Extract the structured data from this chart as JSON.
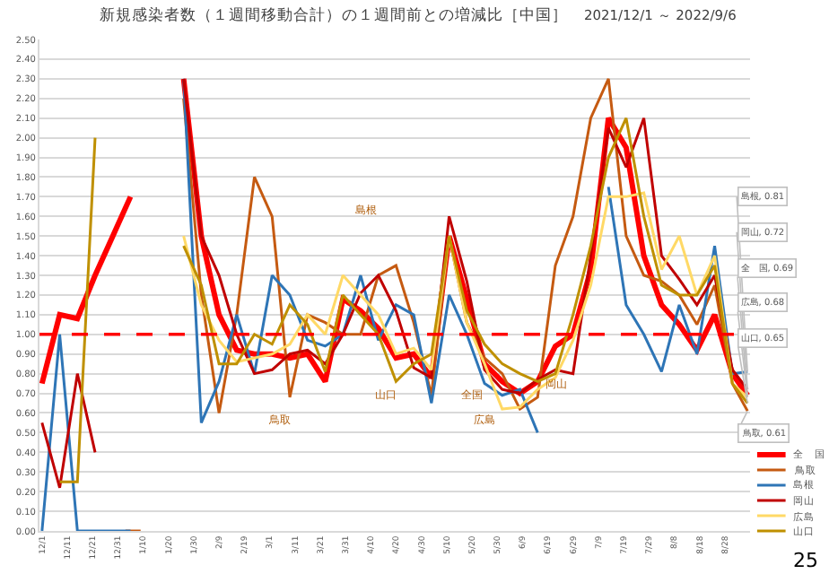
{
  "chart_data": {
    "type": "line",
    "title": "新規感染者数（１週間移動合計）の１週間前との増減比［中国］",
    "subtitle": "2021/12/1 ～ 2022/9/6",
    "x": [
      "2021-12-01",
      "2021-12-08",
      "2021-12-15",
      "2021-12-22",
      "2021-12-29",
      "2022-01-05",
      "2022-01-12",
      "2022-01-19",
      "2022-01-26",
      "2022-02-02",
      "2022-02-09",
      "2022-02-16",
      "2022-02-23",
      "2022-03-02",
      "2022-03-09",
      "2022-03-16",
      "2022-03-23",
      "2022-03-30",
      "2022-04-06",
      "2022-04-13",
      "2022-04-20",
      "2022-04-27",
      "2022-05-04",
      "2022-05-11",
      "2022-05-18",
      "2022-05-25",
      "2022-06-01",
      "2022-06-08",
      "2022-06-15",
      "2022-06-22",
      "2022-06-29",
      "2022-07-06",
      "2022-07-13",
      "2022-07-20",
      "2022-07-27",
      "2022-08-03",
      "2022-08-10",
      "2022-08-17",
      "2022-08-24",
      "2022-08-31",
      "2022-09-06"
    ],
    "series": [
      {
        "name": "全　国",
        "color": "#ff0000",
        "values": [
          0.75,
          1.1,
          1.08,
          1.3,
          1.5,
          1.7,
          null,
          null,
          2.3,
          1.5,
          1.1,
          0.92,
          0.9,
          0.9,
          0.88,
          0.9,
          0.76,
          1.18,
          1.12,
          1.03,
          0.88,
          0.9,
          0.78,
          1.5,
          1.18,
          0.85,
          0.76,
          0.7,
          0.76,
          0.94,
          1.0,
          1.33,
          2.1,
          1.95,
          1.4,
          1.15,
          1.05,
          0.92,
          1.1,
          0.8,
          0.69
        ]
      },
      {
        "name": "鳥取",
        "color": "#c55a11",
        "x": [
          "2022-01-03",
          "2022-01-09",
          "2022-01-12",
          "2022-01-19",
          "2022-01-26",
          "2022-02-02",
          "2022-02-09",
          "2022-02-16",
          "2022-02-23",
          "2022-03-02",
          "2022-03-09",
          "2022-03-16",
          "2022-03-23",
          "2022-03-30",
          "2022-04-06",
          "2022-04-13",
          "2022-04-20",
          "2022-04-27",
          "2022-05-04",
          "2022-05-11",
          "2022-05-18",
          "2022-05-25",
          "2022-06-01",
          "2022-06-08",
          "2022-06-15",
          "2022-06-22",
          "2022-06-29",
          "2022-07-06",
          "2022-07-13",
          "2022-07-20",
          "2022-07-27",
          "2022-08-03",
          "2022-08-10",
          "2022-08-17",
          "2022-08-24",
          "2022-08-31",
          "2022-09-06"
        ],
        "values": [
          0.0,
          0.0,
          null,
          null,
          2.2,
          1.2,
          0.6,
          1.1,
          1.8,
          1.6,
          0.68,
          1.1,
          1.06,
          1.0,
          1.0,
          1.3,
          1.35,
          1.06,
          0.69,
          1.5,
          1.06,
          0.88,
          0.8,
          0.62,
          0.68,
          1.35,
          1.6,
          2.1,
          2.3,
          1.5,
          1.3,
          1.27,
          1.2,
          1.05,
          1.25,
          0.75,
          0.61
        ]
      },
      {
        "name": "島根",
        "color": "#2e75b6",
        "values": [
          0.0,
          1.0,
          0.0,
          0.0,
          0.0,
          0.0,
          null,
          null,
          2.3,
          0.55,
          0.76,
          1.1,
          0.8,
          1.3,
          1.2,
          0.97,
          0.94,
          1.0,
          1.3,
          0.97,
          1.15,
          1.1,
          0.65,
          1.2,
          1.0,
          0.75,
          0.69,
          0.72,
          0.5,
          null,
          null,
          null,
          1.75,
          1.15,
          1.0,
          0.81,
          1.15,
          0.9,
          1.45,
          0.8,
          0.81
        ]
      },
      {
        "name": "岡山",
        "color": "#c00000",
        "values": [
          0.55,
          0.22,
          0.8,
          0.4,
          null,
          null,
          null,
          null,
          2.3,
          1.5,
          1.3,
          1.0,
          0.8,
          0.82,
          0.9,
          0.92,
          0.85,
          1.0,
          1.21,
          1.3,
          1.12,
          0.83,
          0.78,
          1.6,
          1.27,
          0.82,
          0.72,
          0.7,
          0.77,
          0.82,
          0.8,
          1.4,
          2.05,
          1.85,
          2.1,
          1.4,
          1.28,
          1.15,
          1.3,
          0.82,
          0.72
        ]
      },
      {
        "name": "広島",
        "color": "#ffd966",
        "values": [
          null,
          null,
          null,
          null,
          null,
          null,
          null,
          null,
          1.5,
          1.15,
          0.97,
          0.86,
          0.88,
          0.9,
          0.95,
          1.1,
          1.0,
          1.3,
          1.2,
          1.1,
          0.9,
          0.93,
          0.82,
          1.5,
          1.06,
          0.85,
          0.62,
          0.63,
          0.72,
          0.78,
          0.97,
          1.25,
          1.7,
          1.7,
          1.72,
          1.33,
          1.5,
          1.2,
          1.4,
          0.75,
          0.68
        ]
      },
      {
        "name": "山口",
        "color": "#bf9000",
        "values": [
          null,
          0.25,
          0.25,
          2.0,
          null,
          null,
          null,
          null,
          1.45,
          1.25,
          0.85,
          0.85,
          1.0,
          0.95,
          1.15,
          1.05,
          0.81,
          1.2,
          1.1,
          1.0,
          0.76,
          0.85,
          0.9,
          1.5,
          1.12,
          0.95,
          0.85,
          0.8,
          0.76,
          0.8,
          1.1,
          1.45,
          1.9,
          2.1,
          1.6,
          1.25,
          1.2,
          1.2,
          1.35,
          0.75,
          0.65
        ]
      }
    ],
    "ylim": [
      0,
      2.5
    ],
    "yticks": [
      {
        "value": 0,
        "label": "0.00"
      },
      {
        "value": 0.1,
        "label": "0.10"
      },
      {
        "value": 0.2,
        "label": "0.20"
      },
      {
        "value": 0.3,
        "label": "0.30"
      },
      {
        "value": 0.4,
        "label": "0.40"
      },
      {
        "value": 0.5,
        "label": "0.50"
      },
      {
        "value": 0.6,
        "label": "0.60"
      },
      {
        "value": 0.7,
        "label": "0.70"
      },
      {
        "value": 0.8,
        "label": "0.80"
      },
      {
        "value": 0.9,
        "label": "0.90"
      },
      {
        "value": 1.0,
        "label": "1.00"
      },
      {
        "value": 1.1,
        "label": "1.10"
      },
      {
        "value": 1.2,
        "label": "1.20"
      },
      {
        "value": 1.3,
        "label": "1.30"
      },
      {
        "value": 1.4,
        "label": "1.40"
      },
      {
        "value": 1.5,
        "label": "1.50"
      },
      {
        "value": 1.6,
        "label": "1.60"
      },
      {
        "value": 1.7,
        "label": "1.70"
      },
      {
        "value": 1.8,
        "label": "1.80"
      },
      {
        "value": 1.9,
        "label": "1.90"
      },
      {
        "value": 2.0,
        "label": "2.00"
      },
      {
        "value": 2.1,
        "label": "2.10"
      },
      {
        "value": 2.2,
        "label": "2.20"
      },
      {
        "value": 2.3,
        "label": "2.30"
      },
      {
        "value": 2.4,
        "label": "2.40"
      },
      {
        "value": 2.5,
        "label": "2.50"
      }
    ],
    "xlim": [
      "2021-11-30",
      "2022-09-07"
    ],
    "xticks": [
      {
        "value": "2021-12-01",
        "label": "12/1"
      },
      {
        "value": "2021-12-11",
        "label": "12/11"
      },
      {
        "value": "2021-12-21",
        "label": "12/21"
      },
      {
        "value": "2021-12-31",
        "label": "12/31"
      },
      {
        "value": "2022-01-10",
        "label": "1/10"
      },
      {
        "value": "2022-01-20",
        "label": "1/20"
      },
      {
        "value": "2022-01-30",
        "label": "1/30"
      },
      {
        "value": "2022-02-09",
        "label": "2/9"
      },
      {
        "value": "2022-02-19",
        "label": "2/19"
      },
      {
        "value": "2022-03-01",
        "label": "3/1"
      },
      {
        "value": "2022-03-11",
        "label": "3/11"
      },
      {
        "value": "2022-03-21",
        "label": "3/21"
      },
      {
        "value": "2022-03-31",
        "label": "3/31"
      },
      {
        "value": "2022-04-10",
        "label": "4/10"
      },
      {
        "value": "2022-04-20",
        "label": "4/20"
      },
      {
        "value": "2022-04-30",
        "label": "4/30"
      },
      {
        "value": "2022-05-10",
        "label": "5/10"
      },
      {
        "value": "2022-05-20",
        "label": "5/20"
      },
      {
        "value": "2022-05-30",
        "label": "5/30"
      },
      {
        "value": "2022-06-09",
        "label": "6/9"
      },
      {
        "value": "2022-06-19",
        "label": "6/19"
      },
      {
        "value": "2022-06-29",
        "label": "6/29"
      },
      {
        "value": "2022-07-09",
        "label": "7/9"
      },
      {
        "value": "2022-07-19",
        "label": "7/19"
      },
      {
        "value": "2022-07-29",
        "label": "7/29"
      },
      {
        "value": "2022-08-08",
        "label": "8/8"
      },
      {
        "value": "2022-08-18",
        "label": "8/18"
      },
      {
        "value": "2022-08-28",
        "label": "8/28"
      }
    ],
    "grid": "y",
    "legend": "bottom right",
    "ref_lines": [
      {
        "axis": "y",
        "value": 1.0,
        "color": "#ff0000",
        "line_style": "dashed"
      }
    ],
    "annotations": [
      "島根",
      "鳥取",
      "山口",
      "全国",
      "広島",
      "岡山",
      {
        "text": "島根, 0.81",
        "x": "2022-09-06",
        "y": 0.81
      },
      {
        "text": "岡山, 0.72",
        "x": "2022-09-06",
        "y": 0.72
      },
      {
        "text": "全　国, 0.69",
        "x": "2022-09-06",
        "y": 0.69
      },
      {
        "text": "広島, 0.68",
        "x": "2022-09-06",
        "y": 0.68
      },
      {
        "text": "山口, 0.65",
        "x": "2022-09-06",
        "y": 0.65
      },
      {
        "text": "鳥取, 0.61",
        "x": "2022-09-06",
        "y": 0.61
      },
      "25"
    ]
  }
}
